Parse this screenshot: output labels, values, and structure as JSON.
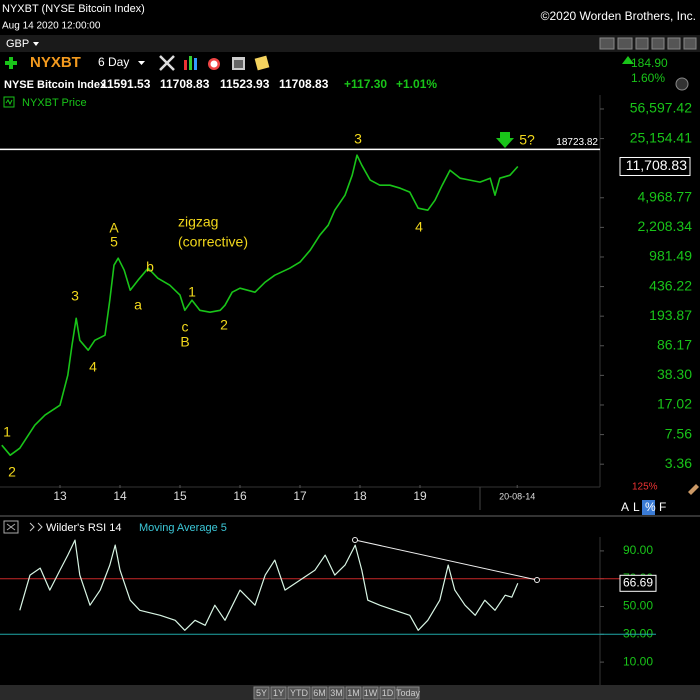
{
  "header": {
    "title": "NYXBT (NYSE Bitcoin Index)",
    "datetime": "Aug 14 2020 12:00:00",
    "copyright": "©2020 Worden Brothers, Inc.",
    "currency": "GBP",
    "symbol": "NYXBT",
    "period": "6 Day",
    "quote": {
      "name": "NYSE Bitcoin Index",
      "open": "11591.53",
      "high": "11708.83",
      "low": "11523.93",
      "close": "11708.83",
      "change": "+117.30",
      "change_pct": "+1.01%"
    },
    "side_change": "184.90",
    "side_pct": "1.60%",
    "zoom": "125%",
    "scale_buttons": [
      "A",
      "L",
      "%",
      "F"
    ],
    "ranges": [
      "5Y",
      "1Y",
      "YTD",
      "6M",
      "3M",
      "1M",
      "1W",
      "1D",
      "Today"
    ]
  },
  "chart_data": [
    {
      "type": "line",
      "log_scale": true,
      "grid": false,
      "x": [
        12.03,
        12.17,
        12.33,
        12.58,
        12.75,
        13.0,
        13.13,
        13.2,
        13.27,
        13.33,
        13.47,
        13.58,
        13.75,
        13.83,
        13.9,
        13.97,
        14.07,
        14.17,
        14.3,
        14.47,
        14.63,
        14.83,
        15.0,
        15.08,
        15.2,
        15.33,
        15.5,
        15.67,
        15.75,
        15.87,
        16.0,
        16.25,
        16.42,
        16.58,
        16.83,
        17.0,
        17.17,
        17.33,
        17.47,
        17.58,
        17.75,
        17.87,
        17.95,
        18.03,
        18.17,
        18.33,
        18.5,
        18.67,
        18.83,
        18.97,
        19.13,
        19.25,
        19.37,
        19.5,
        19.67,
        19.83,
        20.0,
        20.17,
        20.25,
        20.33,
        20.5,
        20.63
      ],
      "series": [
        {
          "name": "NYXBT Price",
          "color": "#19c419",
          "values": [
            5.65,
            4.3,
            5.21,
            9.78,
            12.9,
            16.9,
            38.5,
            87.6,
            183,
            100,
            76.3,
            100,
            115,
            300,
            783,
            949,
            683,
            395,
            519,
            722,
            548,
            453,
            345,
            228,
            300,
            228,
            216,
            228,
            262,
            374,
            417,
            374,
            493,
            596,
            722,
            852,
            1181,
            1784,
            2345,
            3535,
            5338,
            9234,
            15970,
            12143,
            8060,
            7020,
            7020,
            6461,
            5799,
            3736,
            3535,
            4650,
            7020,
            10577,
            8497,
            8060,
            7627,
            8497,
            5338,
            8497,
            9234,
            11708.83
          ]
        }
      ],
      "last_value_label": "11,708.83",
      "hline": 18723.82,
      "xlim": [
        12,
        22
      ],
      "xticks": [
        13,
        14,
        15,
        16,
        17,
        18,
        19,
        {
          "value": 20.62,
          "label": "20-08-14"
        }
      ],
      "ylim": [
        1.9,
        83000
      ],
      "yticks": [
        {
          "value": 56597.42,
          "label": "56,597.42"
        },
        {
          "value": 25154.41,
          "label": "25,154.41"
        },
        {
          "value": 4968.77,
          "label": "4,968.77"
        },
        {
          "value": 2208.34,
          "label": "2,208.34"
        },
        981.49,
        436.22,
        193.87,
        86.17,
        {
          "value": 38.3,
          "label": "38.30"
        },
        17.02,
        7.56,
        3.36
      ],
      "annotations": [
        "1",
        "2",
        "3",
        "4",
        "A",
        "5",
        "b",
        "a",
        "zigzag",
        "(corrective)",
        "1",
        "c",
        "B",
        "2",
        "3",
        "4",
        "5?"
      ]
    },
    {
      "type": "line",
      "log_scale": false,
      "grid": false,
      "x": [
        12.33,
        12.5,
        12.67,
        12.83,
        13.0,
        13.13,
        13.25,
        13.33,
        13.5,
        13.67,
        13.83,
        13.92,
        14.0,
        14.17,
        14.33,
        14.67,
        14.92,
        15.08,
        15.25,
        15.42,
        15.58,
        15.75,
        16.0,
        16.25,
        16.42,
        16.58,
        16.75,
        17.0,
        17.25,
        17.42,
        17.58,
        17.75,
        17.92,
        18.03,
        18.13,
        18.33,
        18.58,
        18.83,
        18.97,
        19.13,
        19.33,
        19.47,
        19.58,
        19.75,
        19.92,
        20.08,
        20.25,
        20.42,
        20.53,
        20.63
      ],
      "series": [
        {
          "name": "Wilder's RSI 14",
          "color": "#d8f5e4",
          "values": [
            47.3,
            72.6,
            77.6,
            61.8,
            76.2,
            87.0,
            97.8,
            72.6,
            50.9,
            61.8,
            79.8,
            94.2,
            76.2,
            54.5,
            47.3,
            43.7,
            40.1,
            32.9,
            40.1,
            36.5,
            50.9,
            40.1,
            61.8,
            50.9,
            72.6,
            83.4,
            61.8,
            69.0,
            76.2,
            87.0,
            72.6,
            79.8,
            94.2,
            76.2,
            54.5,
            50.9,
            47.3,
            43.7,
            32.9,
            40.1,
            54.5,
            79.8,
            61.8,
            50.9,
            43.7,
            54.5,
            47.3,
            58.1,
            56.7,
            66.69
          ]
        }
      ],
      "indicator_note": "Moving Average 5",
      "xlim": [
        12,
        22
      ],
      "ylim": [
        0,
        100
      ],
      "yticks": [
        {
          "value": 90,
          "label": "90.00"
        },
        {
          "value": 70,
          "label": "70.00"
        },
        {
          "value": 50,
          "label": "50.00"
        },
        {
          "value": 30,
          "label": "30.00"
        },
        {
          "value": 10,
          "label": "10.00"
        }
      ],
      "reference_lines": [
        {
          "value": 70,
          "color": "#c82828"
        },
        {
          "value": 30,
          "color": "#1fa8a8"
        }
      ]
    }
  ]
}
